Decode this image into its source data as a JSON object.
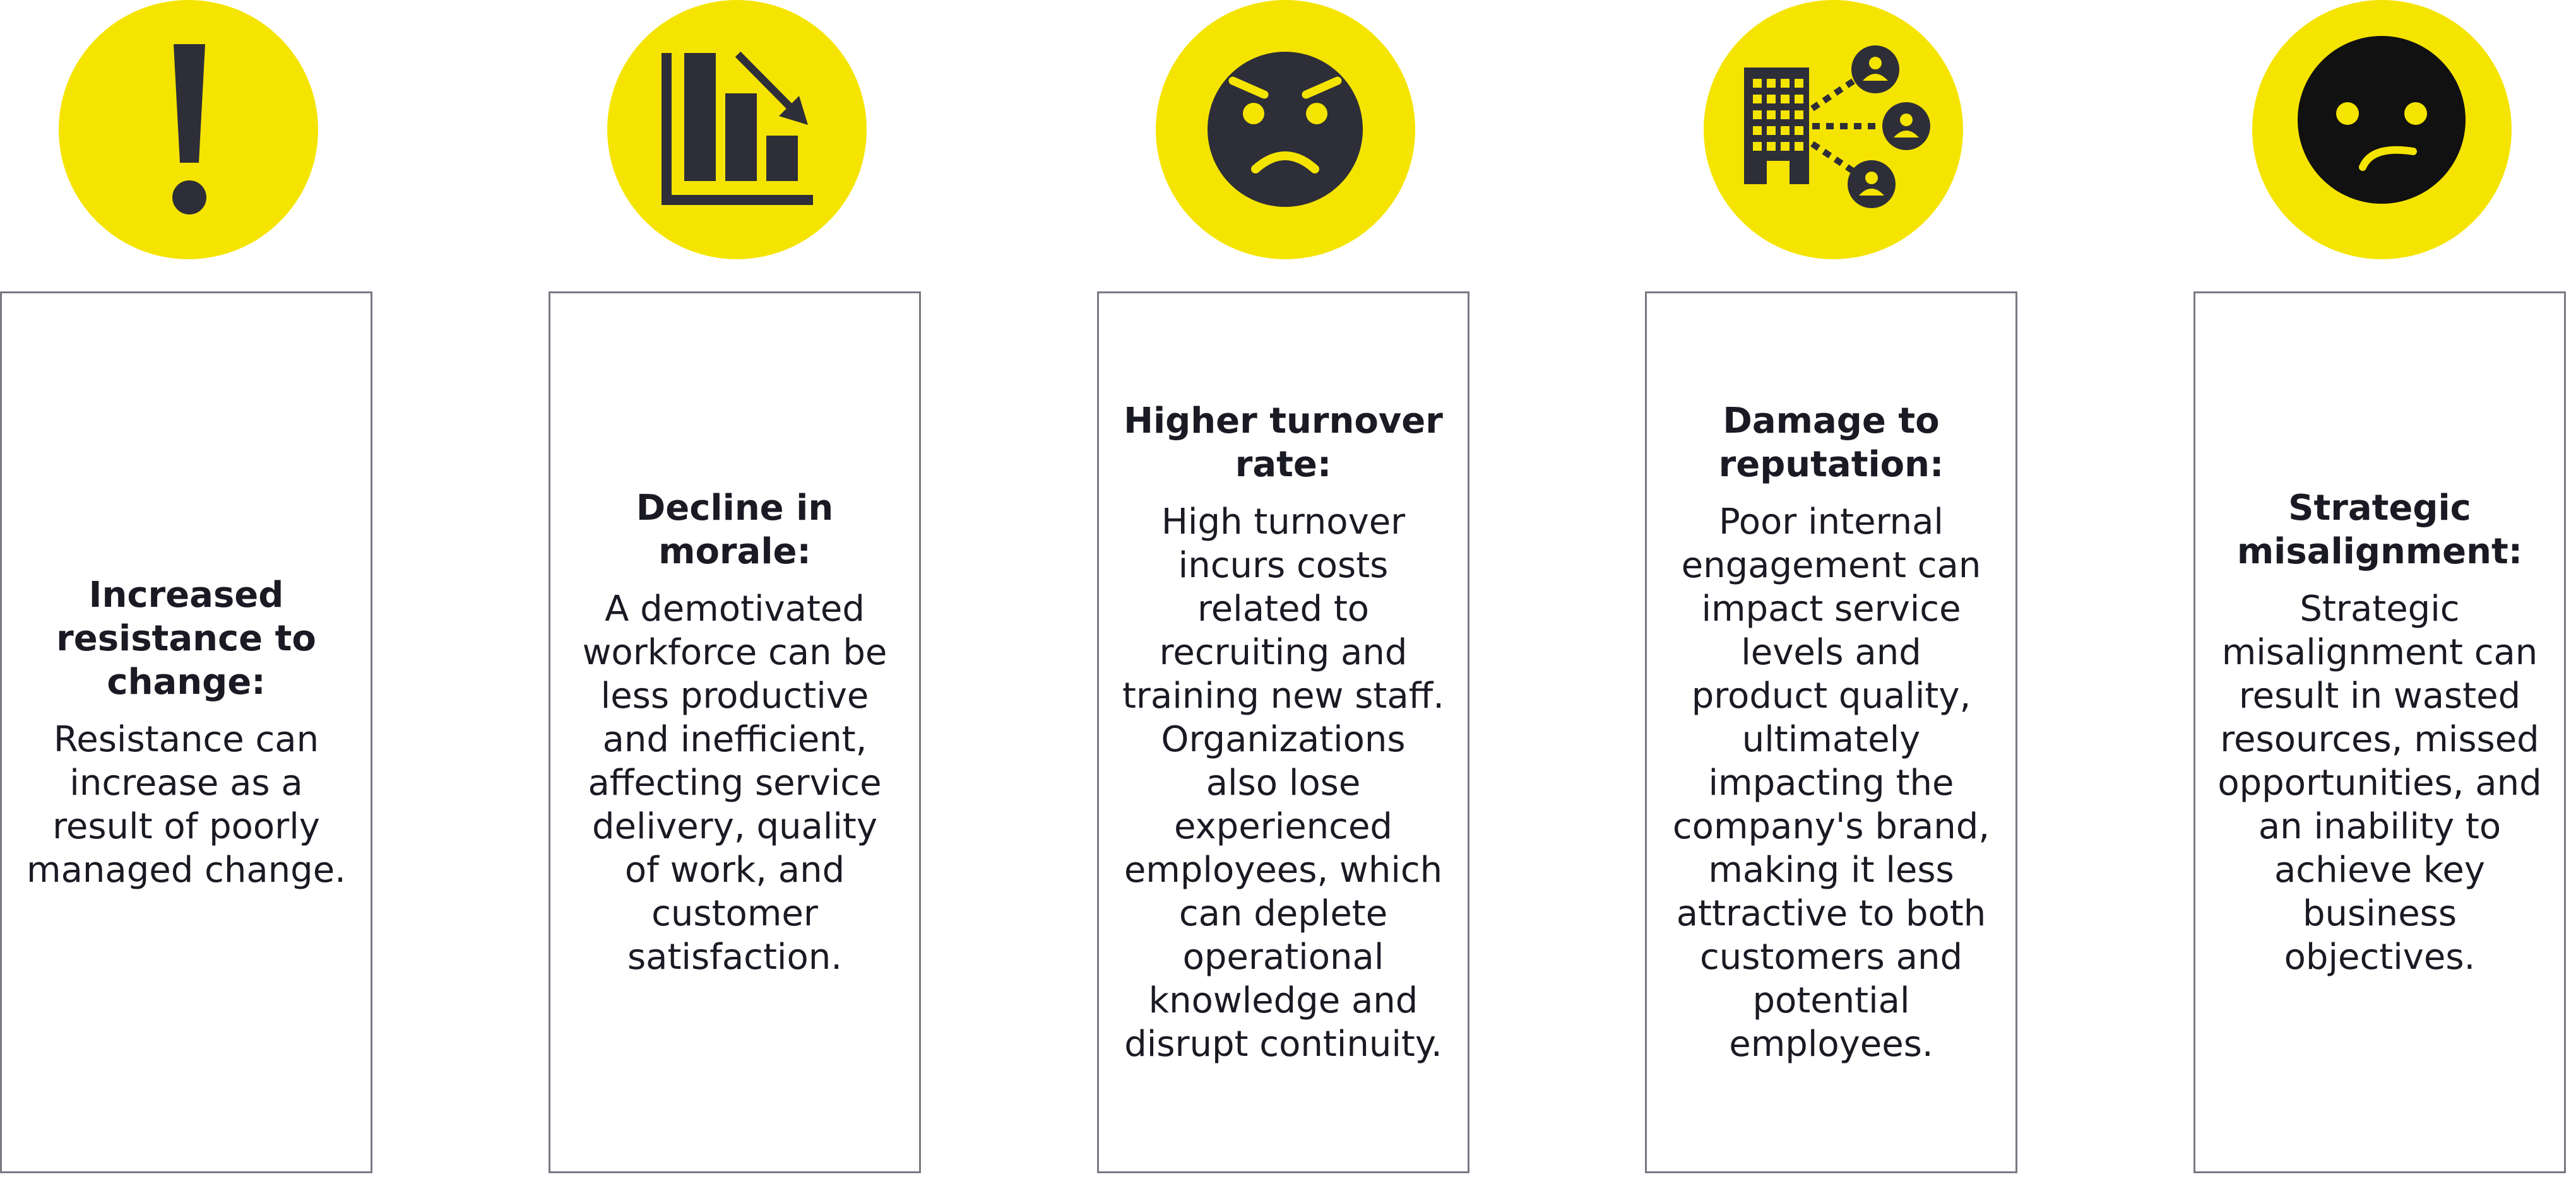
{
  "colors": {
    "accent_yellow": "#f5e400",
    "icon_dark": "#2e2e38",
    "card_border": "#777a82"
  },
  "columns": [
    {
      "icon": "exclamation-icon",
      "title": "Increased resistance to change:",
      "body": "Resistance can increase as a result of poorly managed change."
    },
    {
      "icon": "declining-bar-chart-icon",
      "title": "Decline in morale:",
      "body": "A demotivated workforce can be less productive and inefficient, affecting service delivery, quality of work, and customer satisfaction."
    },
    {
      "icon": "frowning-face-icon",
      "title": "Higher turnover rate:",
      "body": "High turnover incurs costs related to recruiting and training new staff. Organizations also lose experienced employees, which can deplete operational knowledge and disrupt continuity."
    },
    {
      "icon": "building-network-icon",
      "title": "Damage to reputation:",
      "body": "Poor internal engagement can impact service levels and product quality, ultimately impacting the company's brand, making it less attractive to both customers and potential employees."
    },
    {
      "icon": "confused-face-icon",
      "title": "Strategic misalignment:",
      "body": "Strategic misalignment can result in wasted resources, missed opportunities, and an inability to achieve key business objectives."
    }
  ]
}
